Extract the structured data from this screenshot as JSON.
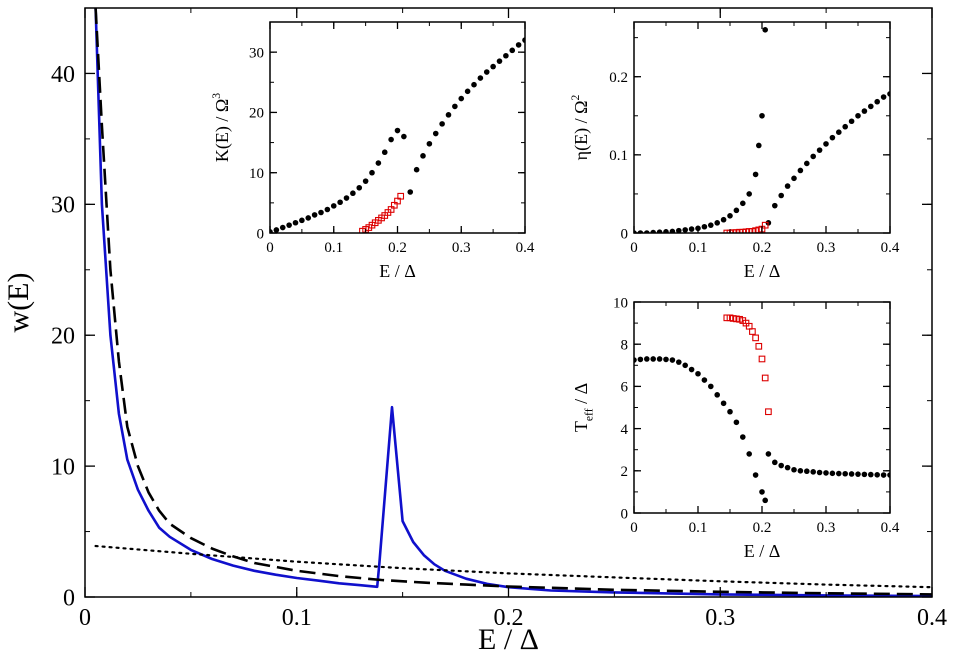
{
  "chart_data": [
    {
      "type": "line",
      "panel": "main",
      "xlabel": "E / Δ",
      "ylabel": "w(E)",
      "xlim": [
        0,
        0.4
      ],
      "ylim": [
        0,
        45
      ],
      "xticks": [
        "0",
        "0.1",
        "0.2",
        "0.3",
        "0.4"
      ],
      "yticks": [
        "0",
        "10",
        "20",
        "30",
        "40"
      ],
      "series": [
        {
          "style": "solid",
          "color": "#1010cc",
          "x": [
            0.005,
            0.008,
            0.012,
            0.016,
            0.02,
            0.025,
            0.03,
            0.035,
            0.04,
            0.05,
            0.06,
            0.07,
            0.08,
            0.09,
            0.1,
            0.11,
            0.12,
            0.13,
            0.138,
            0.139,
            0.145,
            0.15,
            0.155,
            0.16,
            0.165,
            0.17,
            0.18,
            0.19,
            0.2,
            0.22,
            0.25,
            0.3,
            0.35,
            0.4
          ],
          "y": [
            45,
            30,
            20,
            14,
            10.5,
            8.2,
            6.6,
            5.3,
            4.6,
            3.6,
            2.9,
            2.4,
            2.0,
            1.7,
            1.45,
            1.25,
            1.05,
            0.9,
            0.78,
            2.5,
            14.5,
            5.8,
            4.2,
            3.2,
            2.5,
            2.0,
            1.4,
            1.0,
            0.75,
            0.5,
            0.35,
            0.2,
            0.12,
            0.08
          ]
        },
        {
          "style": "dashed",
          "color": "#000000",
          "x": [
            0.005,
            0.008,
            0.012,
            0.016,
            0.02,
            0.025,
            0.03,
            0.035,
            0.04,
            0.05,
            0.06,
            0.07,
            0.08,
            0.09,
            0.1,
            0.12,
            0.14,
            0.16,
            0.18,
            0.2,
            0.25,
            0.3,
            0.35,
            0.4
          ],
          "y": [
            45,
            36,
            25,
            18,
            13,
            10,
            8.0,
            6.6,
            5.6,
            4.5,
            3.7,
            3.1,
            2.6,
            2.3,
            2.0,
            1.6,
            1.3,
            1.1,
            0.95,
            0.8,
            0.55,
            0.4,
            0.28,
            0.2
          ]
        },
        {
          "style": "dotted",
          "color": "#000000",
          "x": [
            0.005,
            0.05,
            0.1,
            0.15,
            0.2,
            0.25,
            0.3,
            0.35,
            0.4
          ],
          "y": [
            3.9,
            3.3,
            2.7,
            2.2,
            1.8,
            1.5,
            1.2,
            0.95,
            0.75
          ]
        }
      ]
    },
    {
      "type": "scatter",
      "panel": "inset-K",
      "xlabel": "E / Δ",
      "ylabel": "K(E) / Ω",
      "ylabel_sup": "3",
      "xlim": [
        0,
        0.4
      ],
      "ylim": [
        0,
        35
      ],
      "xticks": [
        "0",
        "0.1",
        "0.2",
        "0.3",
        "0.4"
      ],
      "yticks": [
        "0",
        "10",
        "20",
        "30"
      ],
      "series": [
        {
          "marker": "filled-circle",
          "color": "#000000",
          "x": [
            0.0,
            0.01,
            0.02,
            0.03,
            0.04,
            0.05,
            0.06,
            0.07,
            0.08,
            0.09,
            0.1,
            0.11,
            0.12,
            0.13,
            0.14,
            0.15,
            0.16,
            0.17,
            0.18,
            0.19,
            0.2,
            0.21,
            0.22,
            0.23,
            0.24,
            0.25,
            0.26,
            0.27,
            0.28,
            0.29,
            0.3,
            0.31,
            0.32,
            0.33,
            0.34,
            0.35,
            0.36,
            0.37,
            0.38,
            0.39,
            0.4
          ],
          "y": [
            0.2,
            0.5,
            0.9,
            1.3,
            1.7,
            2.1,
            2.5,
            3.0,
            3.4,
            3.9,
            4.5,
            5.1,
            5.8,
            6.6,
            7.5,
            8.6,
            10.0,
            11.6,
            13.4,
            15.5,
            17.0,
            16.0,
            6.8,
            10.5,
            12.8,
            14.8,
            16.5,
            18.1,
            19.6,
            21.0,
            22.3,
            23.5,
            24.6,
            25.7,
            26.7,
            27.6,
            28.5,
            29.4,
            30.3,
            31.2,
            32.0
          ]
        },
        {
          "marker": "open-square",
          "color": "#dd0000",
          "x": [
            0.145,
            0.15,
            0.155,
            0.16,
            0.165,
            0.17,
            0.175,
            0.18,
            0.185,
            0.19,
            0.195,
            0.2,
            0.205
          ],
          "y": [
            0.3,
            0.6,
            0.9,
            1.3,
            1.7,
            2.1,
            2.5,
            2.9,
            3.4,
            3.9,
            4.6,
            5.3,
            6.1
          ]
        }
      ]
    },
    {
      "type": "scatter",
      "panel": "inset-eta",
      "xlabel": "E / Δ",
      "ylabel": "η(E) / Ω",
      "ylabel_sup": "2",
      "xlim": [
        0,
        0.4
      ],
      "ylim": [
        0,
        0.27
      ],
      "xticks": [
        "0",
        "0.1",
        "0.2",
        "0.3",
        "0.4"
      ],
      "yticks": [
        "0",
        "0.1",
        "0.2"
      ],
      "series": [
        {
          "marker": "filled-circle",
          "color": "#000000",
          "x": [
            0.0,
            0.01,
            0.02,
            0.03,
            0.04,
            0.05,
            0.06,
            0.07,
            0.08,
            0.09,
            0.1,
            0.11,
            0.12,
            0.13,
            0.14,
            0.15,
            0.16,
            0.17,
            0.18,
            0.19,
            0.195,
            0.2,
            0.205,
            0.21,
            0.22,
            0.23,
            0.24,
            0.25,
            0.26,
            0.27,
            0.28,
            0.29,
            0.3,
            0.31,
            0.32,
            0.33,
            0.34,
            0.35,
            0.36,
            0.37,
            0.38,
            0.39,
            0.4
          ],
          "y": [
            0.0,
            0.0,
            0.0,
            0.0005,
            0.001,
            0.0015,
            0.002,
            0.003,
            0.004,
            0.005,
            0.006,
            0.008,
            0.01,
            0.013,
            0.017,
            0.022,
            0.029,
            0.038,
            0.05,
            0.075,
            0.112,
            0.15,
            0.26,
            0.013,
            0.035,
            0.048,
            0.06,
            0.07,
            0.08,
            0.089,
            0.098,
            0.106,
            0.114,
            0.122,
            0.129,
            0.136,
            0.143,
            0.15,
            0.156,
            0.162,
            0.168,
            0.174,
            0.178
          ]
        },
        {
          "marker": "open-square",
          "color": "#dd0000",
          "x": [
            0.145,
            0.15,
            0.155,
            0.16,
            0.165,
            0.17,
            0.175,
            0.18,
            0.185,
            0.19,
            0.195,
            0.2,
            0.205
          ],
          "y": [
            0.0,
            0.0,
            0.0005,
            0.0005,
            0.001,
            0.001,
            0.0015,
            0.002,
            0.002,
            0.003,
            0.004,
            0.005,
            0.01
          ]
        }
      ]
    },
    {
      "type": "scatter",
      "panel": "inset-T",
      "xlabel": "E / Δ",
      "ylabel": "T",
      "ylabel_sub": "eff",
      "ylabel_tail": " / Δ",
      "xlim": [
        0,
        0.4
      ],
      "ylim": [
        0,
        10
      ],
      "xticks": [
        "0",
        "0.1",
        "0.2",
        "0.3",
        "0.4"
      ],
      "yticks": [
        "0",
        "2",
        "4",
        "6",
        "8",
        "10"
      ],
      "series": [
        {
          "marker": "filled-circle",
          "color": "#000000",
          "x": [
            0.0,
            0.01,
            0.02,
            0.03,
            0.04,
            0.05,
            0.06,
            0.07,
            0.08,
            0.09,
            0.1,
            0.11,
            0.12,
            0.13,
            0.14,
            0.15,
            0.16,
            0.17,
            0.18,
            0.19,
            0.2,
            0.205,
            0.21,
            0.22,
            0.23,
            0.24,
            0.25,
            0.26,
            0.27,
            0.28,
            0.29,
            0.3,
            0.31,
            0.32,
            0.33,
            0.34,
            0.35,
            0.36,
            0.37,
            0.38,
            0.39,
            0.4
          ],
          "y": [
            7.25,
            7.28,
            7.3,
            7.3,
            7.3,
            7.28,
            7.25,
            7.15,
            7.0,
            6.8,
            6.6,
            6.3,
            6.0,
            5.6,
            5.2,
            4.8,
            4.3,
            3.6,
            2.8,
            1.8,
            1.0,
            0.6,
            2.8,
            2.4,
            2.25,
            2.15,
            2.05,
            2.0,
            1.98,
            1.95,
            1.92,
            1.9,
            1.88,
            1.87,
            1.86,
            1.85,
            1.84,
            1.83,
            1.82,
            1.81,
            1.8,
            1.8
          ]
        },
        {
          "marker": "open-square",
          "color": "#dd0000",
          "x": [
            0.145,
            0.15,
            0.155,
            0.16,
            0.165,
            0.17,
            0.175,
            0.18,
            0.185,
            0.19,
            0.195,
            0.2,
            0.205,
            0.21
          ],
          "y": [
            9.25,
            9.25,
            9.22,
            9.2,
            9.18,
            9.12,
            9.0,
            8.85,
            8.6,
            8.3,
            7.9,
            7.3,
            6.4,
            4.8
          ]
        }
      ]
    }
  ]
}
